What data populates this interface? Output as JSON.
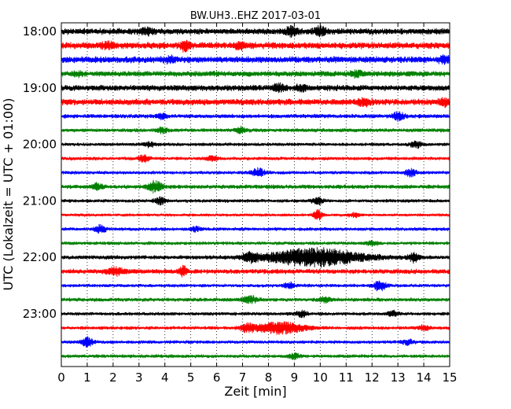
{
  "chart_data": {
    "type": "line",
    "title": "BW.UH3..EHZ 2017-03-01",
    "xlabel": "Zeit  [min]",
    "ylabel": "UTC (Lokalzeit = UTC + 01:00)",
    "xlim": [
      0,
      15
    ],
    "x_ticks": [
      "0",
      "1",
      "2",
      "3",
      "4",
      "5",
      "6",
      "7",
      "8",
      "9",
      "10",
      "11",
      "12",
      "13",
      "14",
      "15"
    ],
    "y_ticks": [
      "18:00",
      "19:00",
      "20:00",
      "21:00",
      "22:00",
      "23:00"
    ],
    "vertical_grid": "dotted, every 1 min",
    "trace_interval_min": 15,
    "start_time": "18:00",
    "trace_colors": [
      "#000000",
      "#ff0000",
      "#0000ff",
      "#008000"
    ],
    "series": [
      {
        "start": "18:00",
        "color": "#000000",
        "amplitude": 0.9,
        "events": [
          [
            8.9,
            1.2,
            0.3
          ],
          [
            10.0,
            1.0,
            0.3
          ],
          [
            3.3,
            0.7,
            0.3
          ]
        ]
      },
      {
        "start": "18:15",
        "color": "#ff0000",
        "amplitude": 0.95,
        "events": [
          [
            4.8,
            1.4,
            0.2
          ],
          [
            1.8,
            0.6,
            0.4
          ],
          [
            6.9,
            0.7,
            0.3
          ]
        ]
      },
      {
        "start": "18:30",
        "color": "#0000ff",
        "amplitude": 0.95,
        "events": [
          [
            14.8,
            0.6,
            0.3
          ],
          [
            4.2,
            0.6,
            0.3
          ]
        ]
      },
      {
        "start": "18:45",
        "color": "#008000",
        "amplitude": 0.8,
        "events": [
          [
            11.4,
            0.6,
            0.3
          ],
          [
            0.7,
            0.4,
            0.3
          ]
        ]
      },
      {
        "start": "19:00",
        "color": "#000000",
        "amplitude": 0.85,
        "events": [
          [
            8.4,
            0.7,
            0.3
          ],
          [
            9.3,
            0.6,
            0.3
          ]
        ]
      },
      {
        "start": "19:15",
        "color": "#ff0000",
        "amplitude": 0.9,
        "events": [
          [
            14.8,
            0.7,
            0.3
          ],
          [
            11.7,
            0.8,
            0.4
          ]
        ]
      },
      {
        "start": "19:30",
        "color": "#0000ff",
        "amplitude": 0.6,
        "events": [
          [
            13.0,
            1.0,
            0.3
          ],
          [
            3.9,
            0.6,
            0.3
          ]
        ]
      },
      {
        "start": "19:45",
        "color": "#008000",
        "amplitude": 0.55,
        "events": [
          [
            6.9,
            0.7,
            0.3
          ],
          [
            3.9,
            0.6,
            0.3
          ]
        ]
      },
      {
        "start": "20:00",
        "color": "#000000",
        "amplitude": 0.5,
        "events": [
          [
            13.7,
            0.8,
            0.3
          ],
          [
            3.4,
            0.5,
            0.3
          ]
        ]
      },
      {
        "start": "20:15",
        "color": "#ff0000",
        "amplitude": 0.5,
        "events": [
          [
            3.2,
            0.8,
            0.3
          ],
          [
            5.8,
            0.6,
            0.3
          ]
        ]
      },
      {
        "start": "20:30",
        "color": "#0000ff",
        "amplitude": 0.5,
        "events": [
          [
            7.6,
            1.0,
            0.4
          ],
          [
            13.5,
            0.8,
            0.3
          ]
        ]
      },
      {
        "start": "20:45",
        "color": "#008000",
        "amplitude": 0.6,
        "events": [
          [
            3.6,
            1.4,
            0.4
          ],
          [
            1.4,
            0.7,
            0.3
          ]
        ]
      },
      {
        "start": "21:00",
        "color": "#000000",
        "amplitude": 0.5,
        "events": [
          [
            3.8,
            0.8,
            0.3
          ],
          [
            9.9,
            0.8,
            0.3
          ]
        ]
      },
      {
        "start": "21:15",
        "color": "#ff0000",
        "amplitude": 0.45,
        "events": [
          [
            9.9,
            1.5,
            0.2
          ],
          [
            11.3,
            0.5,
            0.3
          ]
        ]
      },
      {
        "start": "21:30",
        "color": "#0000ff",
        "amplitude": 0.5,
        "events": [
          [
            1.5,
            0.9,
            0.3
          ],
          [
            5.2,
            0.5,
            0.3
          ]
        ]
      },
      {
        "start": "21:45",
        "color": "#008000",
        "amplitude": 0.5,
        "events": [
          [
            12.0,
            0.5,
            0.3
          ]
        ]
      },
      {
        "start": "22:00",
        "color": "#000000",
        "amplitude": 0.6,
        "events": [
          [
            9.8,
            2.2,
            2.5
          ],
          [
            7.3,
            1.0,
            0.4
          ],
          [
            13.6,
            1.0,
            0.3
          ]
        ]
      },
      {
        "start": "22:15",
        "color": "#ff0000",
        "amplitude": 0.7,
        "events": [
          [
            4.7,
            1.2,
            0.2
          ],
          [
            2.1,
            0.8,
            0.5
          ]
        ]
      },
      {
        "start": "22:30",
        "color": "#0000ff",
        "amplitude": 0.5,
        "events": [
          [
            12.3,
            1.4,
            0.3
          ],
          [
            8.8,
            0.7,
            0.3
          ]
        ]
      },
      {
        "start": "22:45",
        "color": "#008000",
        "amplitude": 0.55,
        "events": [
          [
            7.3,
            0.8,
            0.4
          ],
          [
            10.2,
            0.6,
            0.3
          ]
        ]
      },
      {
        "start": "23:00",
        "color": "#000000",
        "amplitude": 0.5,
        "events": [
          [
            9.3,
            0.8,
            0.3
          ],
          [
            12.8,
            0.6,
            0.3
          ]
        ]
      },
      {
        "start": "23:15",
        "color": "#ff0000",
        "amplitude": 0.5,
        "events": [
          [
            8.5,
            1.4,
            1.3
          ],
          [
            7.2,
            0.9,
            0.4
          ],
          [
            14.0,
            0.6,
            0.3
          ]
        ]
      },
      {
        "start": "23:30",
        "color": "#0000ff",
        "amplitude": 0.5,
        "events": [
          [
            1.0,
            1.2,
            0.3
          ],
          [
            13.4,
            0.6,
            0.3
          ]
        ]
      },
      {
        "start": "23:45",
        "color": "#008000",
        "amplitude": 0.5,
        "events": [
          [
            9.0,
            0.6,
            0.3
          ]
        ]
      }
    ]
  }
}
